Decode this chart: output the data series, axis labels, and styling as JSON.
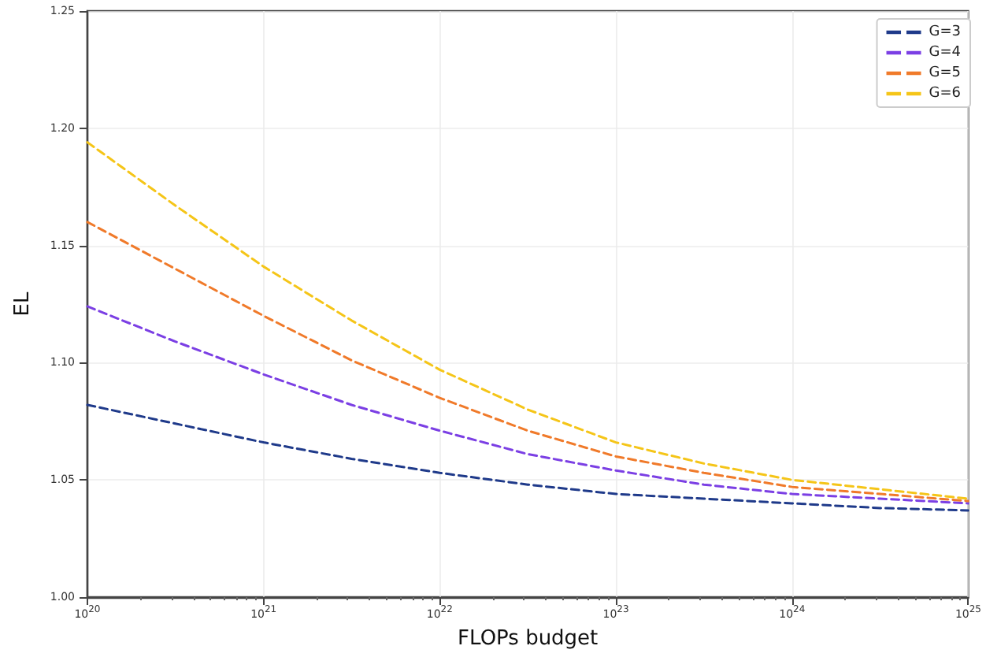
{
  "chart_data": {
    "type": "line",
    "xlabel": "FLOPs budget",
    "ylabel": "EL",
    "x": [
      1e+20,
      3.16e+20,
      1e+21,
      3.16e+21,
      1e+22,
      3.16e+22,
      1e+23,
      3.16e+23,
      1e+24,
      3.16e+24,
      1e+25
    ],
    "series": [
      {
        "name": "G=3",
        "color": "#1f3a8a",
        "values": [
          1.082,
          1.074,
          1.066,
          1.059,
          1.053,
          1.048,
          1.044,
          1.042,
          1.04,
          1.038,
          1.037
        ]
      },
      {
        "name": "G=4",
        "color": "#7b3fe4",
        "values": [
          1.124,
          1.109,
          1.095,
          1.082,
          1.071,
          1.061,
          1.054,
          1.048,
          1.044,
          1.042,
          1.04
        ]
      },
      {
        "name": "G=5",
        "color": "#f07a2a",
        "values": [
          1.16,
          1.14,
          1.12,
          1.101,
          1.085,
          1.071,
          1.06,
          1.053,
          1.047,
          1.044,
          1.041
        ]
      },
      {
        "name": "G=6",
        "color": "#f5c518",
        "values": [
          1.194,
          1.167,
          1.141,
          1.118,
          1.097,
          1.08,
          1.066,
          1.057,
          1.05,
          1.046,
          1.042
        ]
      }
    ],
    "log": "x",
    "xlim": [
      1e+20,
      1e+25
    ],
    "xticks": [
      {
        "value": 1e+20,
        "label": "10$^{20}$"
      },
      {
        "value": 1e+21,
        "label": "10$^{21}$"
      },
      {
        "value": 1e+22,
        "label": "10$^{22}$"
      },
      {
        "value": 1e+23,
        "label": "10$^{23}$"
      },
      {
        "value": 1e+24,
        "label": "10$^{24}$"
      },
      {
        "value": 1e+25,
        "label": "10$^{25}$"
      }
    ],
    "ylim": [
      1.0,
      1.25
    ],
    "yticks": [
      {
        "value": 1.0,
        "label": "1.00"
      },
      {
        "value": 1.05,
        "label": "1.05"
      },
      {
        "value": 1.1,
        "label": "1.10"
      },
      {
        "value": 1.15,
        "label": "1.15"
      },
      {
        "value": 1.2,
        "label": "1.20"
      },
      {
        "value": 1.25,
        "label": "1.25"
      }
    ],
    "grid": true,
    "legend": "top right",
    "line_style": "dashed",
    "marker": "none"
  }
}
